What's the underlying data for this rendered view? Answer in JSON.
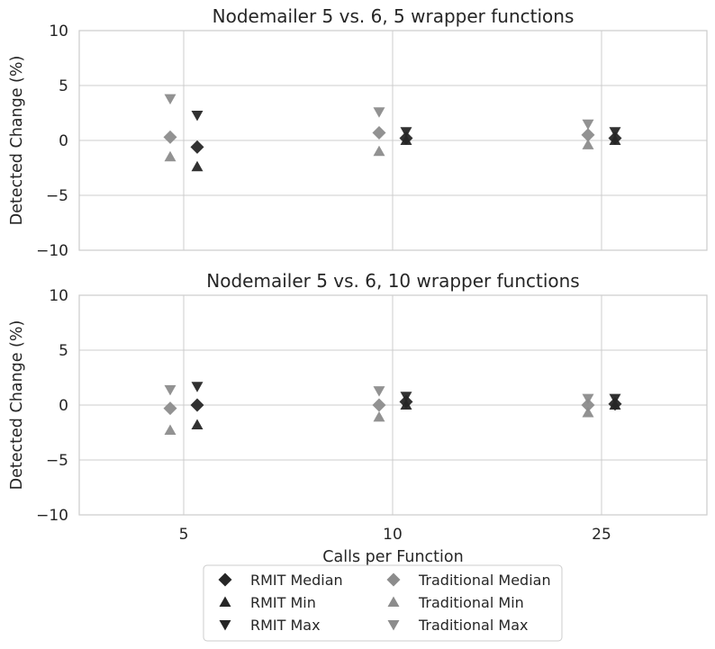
{
  "chart_data": [
    {
      "type": "scatter",
      "title": "Nodemailer 5 vs. 6, 5 wrapper functions",
      "xlabel": "",
      "ylabel": "Detected Change (%)",
      "categories": [
        "5",
        "10",
        "25"
      ],
      "ylim": [
        -10,
        10
      ],
      "yticks": [
        10,
        5,
        0,
        -5,
        -10
      ],
      "grid": true,
      "series": [
        {
          "name": "RMIT Median",
          "values": [
            -0.6,
            0.2,
            0.2
          ]
        },
        {
          "name": "RMIT Min",
          "values": [
            -2.4,
            0.0,
            0.0
          ]
        },
        {
          "name": "RMIT Max",
          "values": [
            2.3,
            0.8,
            0.8
          ]
        },
        {
          "name": "Traditional Median",
          "values": [
            0.3,
            0.7,
            0.5
          ]
        },
        {
          "name": "Traditional Min",
          "values": [
            -1.5,
            -1.0,
            -0.4
          ]
        },
        {
          "name": "Traditional Max",
          "values": [
            3.8,
            2.6,
            1.5
          ]
        }
      ]
    },
    {
      "type": "scatter",
      "title": "Nodemailer 5 vs. 6, 10 wrapper functions",
      "xlabel": "Calls per Function",
      "ylabel": "Detected Change (%)",
      "categories": [
        "5",
        "10",
        "25"
      ],
      "ylim": [
        -10,
        10
      ],
      "yticks": [
        10,
        5,
        0,
        -5,
        -10
      ],
      "grid": true,
      "series": [
        {
          "name": "RMIT Median",
          "values": [
            0.0,
            0.3,
            0.1
          ]
        },
        {
          "name": "RMIT Min",
          "values": [
            -1.8,
            0.0,
            0.0
          ]
        },
        {
          "name": "RMIT Max",
          "values": [
            1.7,
            0.8,
            0.6
          ]
        },
        {
          "name": "Traditional Median",
          "values": [
            -0.3,
            0.0,
            0.0
          ]
        },
        {
          "name": "Traditional Min",
          "values": [
            -2.3,
            -1.1,
            -0.7
          ]
        },
        {
          "name": "Traditional Max",
          "values": [
            1.4,
            1.3,
            0.6
          ]
        }
      ]
    }
  ],
  "styles": {
    "rmit_color": "#262626",
    "traditional_color": "#8c8c8c",
    "grid_color": "#cccccc"
  },
  "legend": {
    "placement": "below-center",
    "columns": 2,
    "items": [
      {
        "label": "RMIT Median",
        "marker": "diamond",
        "group": "rmit"
      },
      {
        "label": "RMIT Min",
        "marker": "triangle-up",
        "group": "rmit"
      },
      {
        "label": "RMIT Max",
        "marker": "triangle-down",
        "group": "rmit"
      },
      {
        "label": "Traditional Median",
        "marker": "diamond",
        "group": "traditional"
      },
      {
        "label": "Traditional Min",
        "marker": "triangle-up",
        "group": "traditional"
      },
      {
        "label": "Traditional Max",
        "marker": "triangle-down",
        "group": "traditional"
      }
    ]
  }
}
